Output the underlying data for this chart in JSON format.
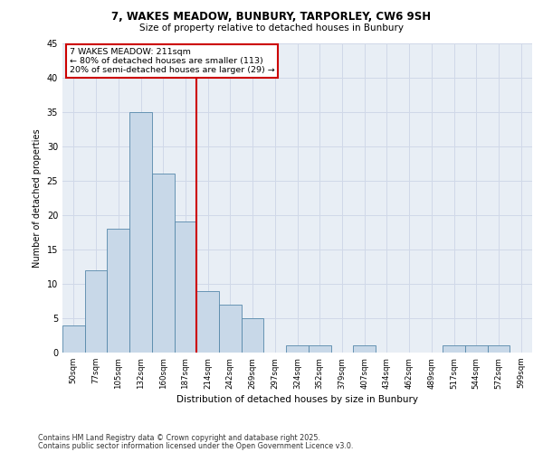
{
  "title_line1": "7, WAKES MEADOW, BUNBURY, TARPORLEY, CW6 9SH",
  "title_line2": "Size of property relative to detached houses in Bunbury",
  "xlabel": "Distribution of detached houses by size in Bunbury",
  "ylabel": "Number of detached properties",
  "categories": [
    "50sqm",
    "77sqm",
    "105sqm",
    "132sqm",
    "160sqm",
    "187sqm",
    "214sqm",
    "242sqm",
    "269sqm",
    "297sqm",
    "324sqm",
    "352sqm",
    "379sqm",
    "407sqm",
    "434sqm",
    "462sqm",
    "489sqm",
    "517sqm",
    "544sqm",
    "572sqm",
    "599sqm"
  ],
  "values": [
    4,
    12,
    18,
    35,
    26,
    19,
    9,
    7,
    5,
    0,
    1,
    1,
    0,
    1,
    0,
    0,
    0,
    1,
    1,
    1,
    0
  ],
  "bar_color": "#c8d8e8",
  "bar_edge_color": "#5588aa",
  "grid_color": "#d0d8e8",
  "background_color": "#e8eef5",
  "vline_x_index": 6,
  "vline_color": "#cc0000",
  "annotation_title": "7 WAKES MEADOW: 211sqm",
  "annotation_line1": "← 80% of detached houses are smaller (113)",
  "annotation_line2": "20% of semi-detached houses are larger (29) →",
  "annotation_box_color": "#ffffff",
  "annotation_box_edge": "#cc0000",
  "ylim": [
    0,
    45
  ],
  "yticks": [
    0,
    5,
    10,
    15,
    20,
    25,
    30,
    35,
    40,
    45
  ],
  "footer_line1": "Contains HM Land Registry data © Crown copyright and database right 2025.",
  "footer_line2": "Contains public sector information licensed under the Open Government Licence v3.0."
}
